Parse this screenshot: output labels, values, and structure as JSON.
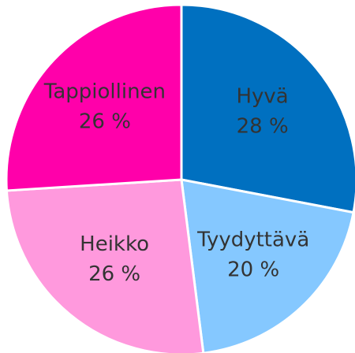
{
  "chart_data": {
    "type": "pie",
    "categories": [
      "Hyvä",
      "Tyydyttävä",
      "Heikko",
      "Tappiollinen"
    ],
    "values": [
      28,
      20,
      26,
      26
    ],
    "value_labels": [
      "28 %",
      "20 %",
      "26 %",
      "26 %"
    ],
    "colors": [
      "#0070c0",
      "#85c8ff",
      "#ff99dd",
      "#ff00aa"
    ]
  }
}
